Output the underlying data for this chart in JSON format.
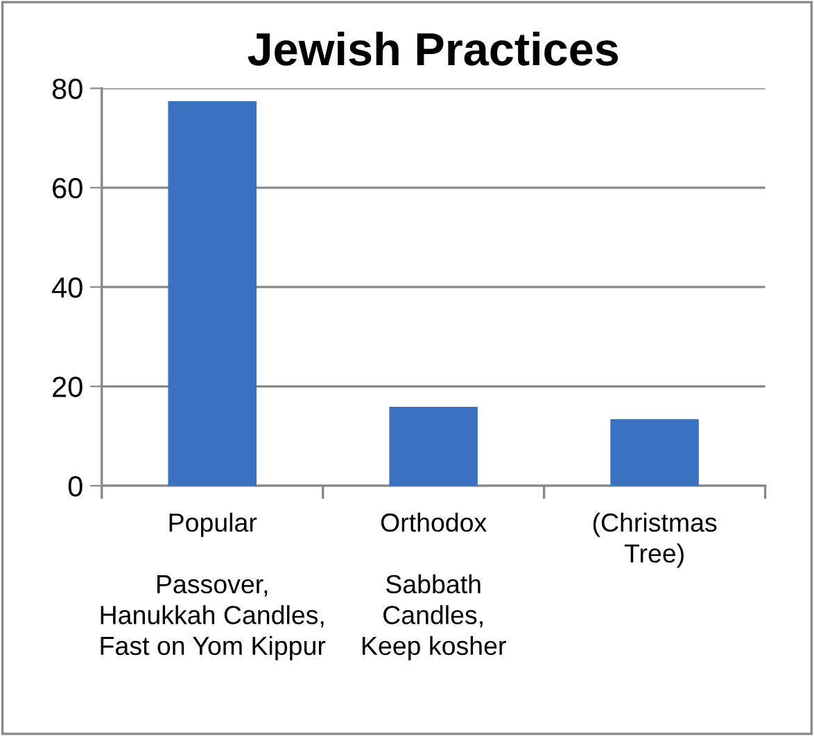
{
  "chart_data": {
    "type": "bar",
    "title": "Jewish Practices",
    "categories": [
      "Popular\n\nPassover,\nHanukkah Candles,\nFast on Yom Kippur",
      "Orthodox\n\nSabbath\nCandles,\nKeep kosher",
      "(Christmas\nTree)"
    ],
    "values": [
      77.4,
      15.9,
      13.4
    ],
    "color": "#3a72c0",
    "ylim": [
      0,
      80
    ],
    "yticks": [
      0,
      20,
      40,
      60,
      80
    ],
    "grid": "y",
    "legend": false
  }
}
